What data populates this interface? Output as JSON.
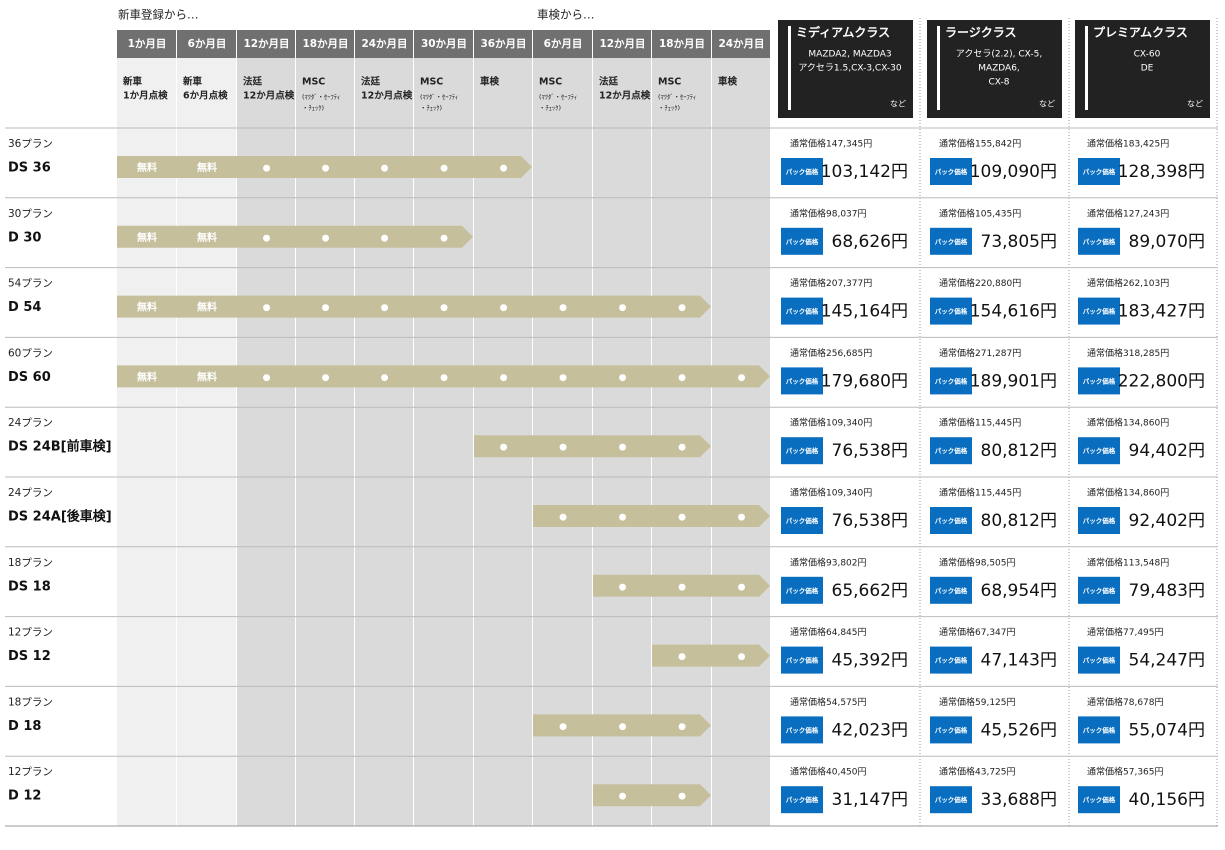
{
  "header": {
    "group1": "新車登録から…",
    "group2": "車検から…",
    "columns": [
      {
        "month": "1か月目",
        "lines": [
          "新車",
          "1か月点検"
        ]
      },
      {
        "month": "6か月目",
        "lines": [
          "新車",
          "6か月点検"
        ]
      },
      {
        "month": "12か月目",
        "lines": [
          "法廷",
          "12か月点検"
        ]
      },
      {
        "month": "18か月目",
        "lines": [
          "MSC",
          "(ﾏﾂﾀﾞ・ｾｰﾌﾃｨ",
          "・ﾁｪｯｸ)"
        ]
      },
      {
        "month": "24か月目",
        "lines": [
          "法廷",
          "12か月点検"
        ]
      },
      {
        "month": "30か月目",
        "lines": [
          "MSC",
          "(ﾏﾂﾀﾞ・ｾｰﾌﾃｨ",
          "・ﾁｪｯｸ)"
        ]
      },
      {
        "month": "36か月目",
        "lines": [
          "車検"
        ]
      },
      {
        "month": "6か月目",
        "lines": [
          "MSC",
          "(ﾏﾂﾀﾞ・ｾｰﾌﾃｨ",
          "・ﾁｪｯｸ)"
        ]
      },
      {
        "month": "12か月目",
        "lines": [
          "法廷",
          "12か月点検"
        ]
      },
      {
        "month": "18か月目",
        "lines": [
          "MSC",
          "(ﾏﾂﾀﾞ・ｾｰﾌﾃｨ",
          "・ﾁｪｯｸ)"
        ]
      },
      {
        "month": "24か月目",
        "lines": [
          "車検"
        ]
      }
    ],
    "classes": [
      {
        "name": "ミディアムクラス",
        "models": [
          "MAZDA2, MAZDA3",
          "アクセラ1.5,CX-3,CX-30"
        ],
        "note": "など"
      },
      {
        "name": "ラージクラス",
        "models": [
          "アクセラ(2.2), CX-5,",
          "MAZDA6,",
          "CX-8"
        ],
        "note": "など"
      },
      {
        "name": "プレミアムクラス",
        "models": [
          "CX-60",
          "DE"
        ],
        "note": "など"
      }
    ]
  },
  "rows": [
    {
      "plan": "36プラン",
      "name": "DS 36",
      "cells": [
        "無料",
        "無料",
        "●",
        "●",
        "●",
        "●",
        "●",
        null,
        null,
        null,
        null
      ],
      "prices": [
        {
          "regular": "通常価格147,345円",
          "badge": "パック価格",
          "price": "103,142円"
        },
        {
          "regular": "通常価格155,842円",
          "badge": "パック価格",
          "price": "109,090円"
        },
        {
          "regular": "通常価格183,425円",
          "badge": "パック価格",
          "price": "128,398円"
        }
      ]
    },
    {
      "plan": "30プラン",
      "name": "D 30",
      "cells": [
        "無料",
        "無料",
        "●",
        "●",
        "●",
        "●",
        null,
        null,
        null,
        null,
        null
      ],
      "prices": [
        {
          "regular": "通常価格98,037円",
          "badge": "パック価格",
          "price": "68,626円"
        },
        {
          "regular": "通常価格105,435円",
          "badge": "パック価格",
          "price": "73,805円"
        },
        {
          "regular": "通常価格127,243円",
          "badge": "パック価格",
          "price": "89,070円"
        }
      ]
    },
    {
      "plan": "54プラン",
      "name": "D 54",
      "cells": [
        "無料",
        "無料",
        "●",
        "●",
        "●",
        "●",
        "●",
        "●",
        "●",
        "●",
        null
      ],
      "prices": [
        {
          "regular": "通常価格207,377円",
          "badge": "パック価格",
          "price": "145,164円"
        },
        {
          "regular": "通常価格220,880円",
          "badge": "パック価格",
          "price": "154,616円"
        },
        {
          "regular": "通常価格262,103円",
          "badge": "パック価格",
          "price": "183,427円"
        }
      ]
    },
    {
      "plan": "60プラン",
      "name": "DS 60",
      "cells": [
        "無料",
        "無料",
        "●",
        "●",
        "●",
        "●",
        "●",
        "●",
        "●",
        "●",
        "●"
      ],
      "prices": [
        {
          "regular": "通常価格256,685円",
          "badge": "パック価格",
          "price": "179,680円"
        },
        {
          "regular": "通常価格271,287円",
          "badge": "パック価格",
          "price": "189,901円"
        },
        {
          "regular": "通常価格318,285円",
          "badge": "パック価格",
          "price": "222,800円"
        }
      ]
    },
    {
      "plan": "24プラン",
      "name": "DS 24B[前車検]",
      "cells": [
        null,
        null,
        null,
        null,
        null,
        null,
        "●",
        "●",
        "●",
        "●",
        null
      ],
      "prices": [
        {
          "regular": "通常価格109,340円",
          "badge": "パック価格",
          "price": "76,538円"
        },
        {
          "regular": "通常価格115,445円",
          "badge": "パック価格",
          "price": "80,812円"
        },
        {
          "regular": "通常価格134,860円",
          "badge": "パック価格",
          "price": "94,402円"
        }
      ]
    },
    {
      "plan": "24プラン",
      "name": "DS 24A[後車検]",
      "cells": [
        null,
        null,
        null,
        null,
        null,
        null,
        null,
        "●",
        "●",
        "●",
        "●"
      ],
      "prices": [
        {
          "regular": "通常価格109,340円",
          "badge": "パック価格",
          "price": "76,538円"
        },
        {
          "regular": "通常価格115,445円",
          "badge": "パック価格",
          "price": "80,812円"
        },
        {
          "regular": "通常価格134,860円",
          "badge": "パック価格",
          "price": "92,402円"
        }
      ]
    },
    {
      "plan": "18プラン",
      "name": "DS 18",
      "cells": [
        null,
        null,
        null,
        null,
        null,
        null,
        null,
        null,
        "●",
        "●",
        "●"
      ],
      "prices": [
        {
          "regular": "通常価格93,802円",
          "badge": "パック価格",
          "price": "65,662円"
        },
        {
          "regular": "通常価格98,505円",
          "badge": "パック価格",
          "price": "68,954円"
        },
        {
          "regular": "通常価格113,548円",
          "badge": "パック価格",
          "price": "79,483円"
        }
      ]
    },
    {
      "plan": "12プラン",
      "name": "DS 12",
      "cells": [
        null,
        null,
        null,
        null,
        null,
        null,
        null,
        null,
        null,
        "●",
        "●"
      ],
      "prices": [
        {
          "regular": "通常価格64,845円",
          "badge": "パック価格",
          "price": "45,392円"
        },
        {
          "regular": "通常価格67,347円",
          "badge": "パック価格",
          "price": "47,143円"
        },
        {
          "regular": "通常価格77,495円",
          "badge": "パック価格",
          "price": "54,247円"
        }
      ]
    },
    {
      "plan": "18プラン",
      "name": "D 18",
      "cells": [
        null,
        null,
        null,
        null,
        null,
        null,
        null,
        "●",
        "●",
        "●",
        null
      ],
      "prices": [
        {
          "regular": "通常価格54,575円",
          "badge": "パック価格",
          "price": "42,023円"
        },
        {
          "regular": "通常価格59,125円",
          "badge": "パック価格",
          "price": "45,526円"
        },
        {
          "regular": "通常価格78,678円",
          "badge": "パック価格",
          "price": "55,074円"
        }
      ]
    },
    {
      "plan": "12プラン",
      "name": "D 12",
      "cells": [
        null,
        null,
        null,
        null,
        null,
        null,
        null,
        null,
        "●",
        "●",
        null
      ],
      "prices": [
        {
          "regular": "通常価格40,450円",
          "badge": "パック価格",
          "price": "31,147円"
        },
        {
          "regular": "通常価格43,725円",
          "badge": "パック価格",
          "price": "33,688円"
        },
        {
          "regular": "通常価格57,365円",
          "badge": "パック価格",
          "price": "40,156円"
        }
      ]
    }
  ]
}
